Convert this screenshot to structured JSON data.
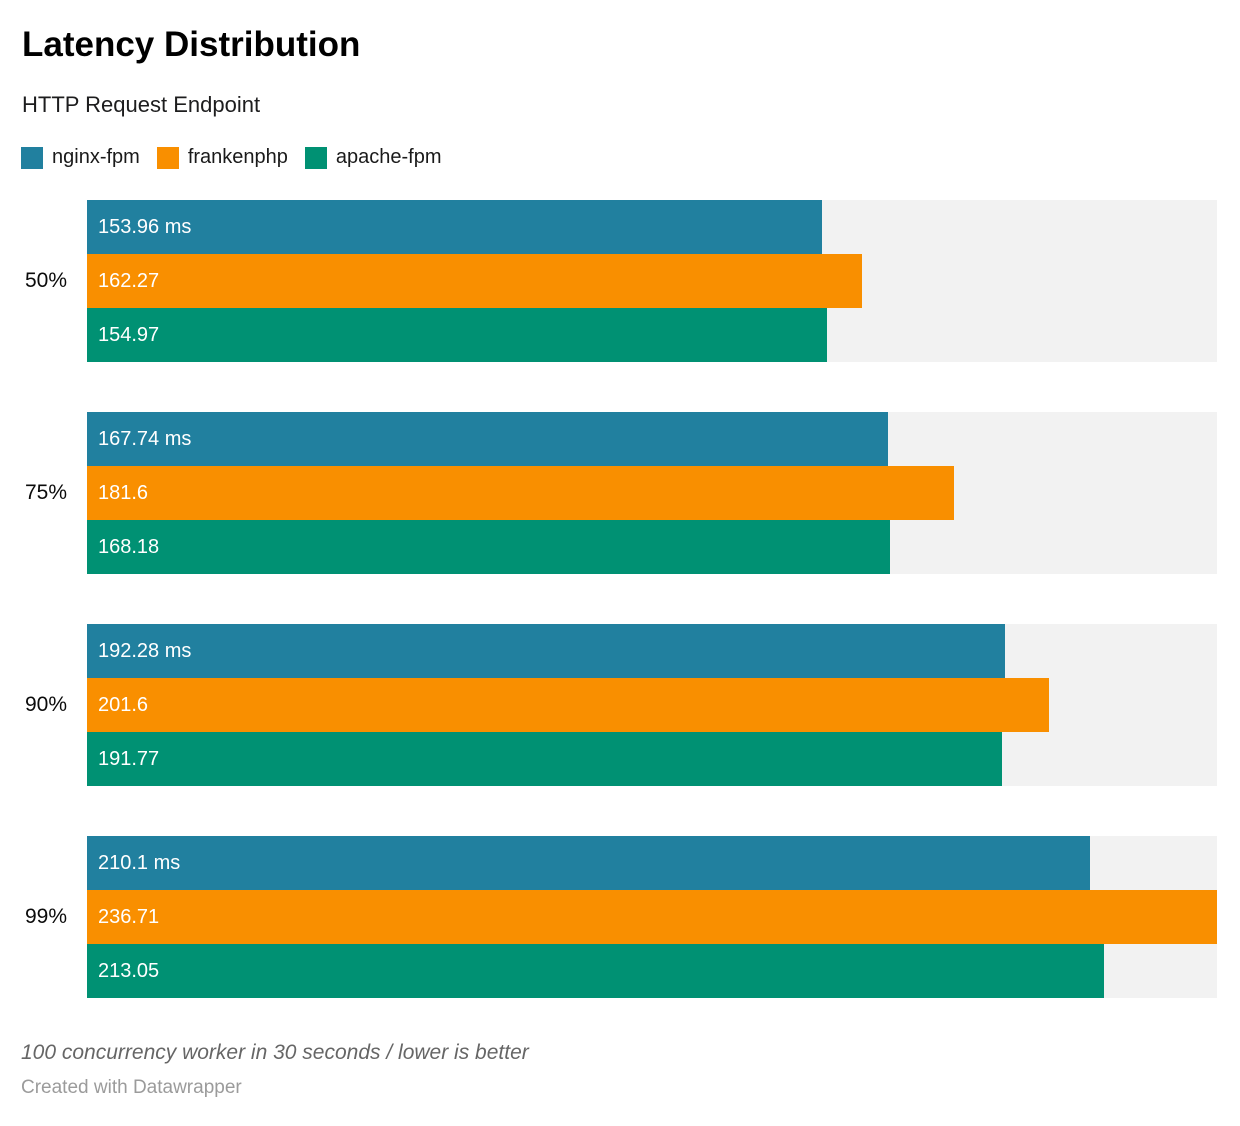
{
  "header": {
    "title": "Latency Distribution",
    "subtitle": "HTTP Request Endpoint"
  },
  "legend": {
    "items": [
      {
        "label": "nginx-fpm",
        "color": "#21809f"
      },
      {
        "label": "frankenphp",
        "color": "#f98f00"
      },
      {
        "label": "apache-fpm",
        "color": "#009173"
      }
    ]
  },
  "chart_data": {
    "type": "bar",
    "orientation": "horizontal",
    "title": "Latency Distribution",
    "subtitle": "HTTP Request Endpoint",
    "categories": [
      "50%",
      "75%",
      "90%",
      "99%"
    ],
    "series": [
      {
        "name": "nginx-fpm",
        "color": "#21809f",
        "values": [
          153.96,
          167.74,
          192.28,
          210.1
        ],
        "labels": [
          "153.96 ms",
          "167.74 ms",
          "192.28 ms",
          "210.1 ms"
        ]
      },
      {
        "name": "frankenphp",
        "color": "#f98f00",
        "values": [
          162.27,
          181.6,
          201.6,
          236.71
        ],
        "labels": [
          "162.27",
          "181.6",
          "201.6",
          "236.71"
        ]
      },
      {
        "name": "apache-fpm",
        "color": "#009173",
        "values": [
          154.97,
          168.18,
          191.77,
          213.05
        ],
        "labels": [
          "154.97",
          "168.18",
          "191.77",
          "213.05"
        ]
      }
    ],
    "value_unit": "ms",
    "xlim": [
      0,
      236.71
    ],
    "grid": false,
    "legend_position": "top",
    "track_color": "#f2f2f2",
    "value_label_color": "#ffffff"
  },
  "footer": {
    "note": "100 concurrency worker in 30 seconds / lower is better",
    "attribution": "Created with Datawrapper"
  }
}
